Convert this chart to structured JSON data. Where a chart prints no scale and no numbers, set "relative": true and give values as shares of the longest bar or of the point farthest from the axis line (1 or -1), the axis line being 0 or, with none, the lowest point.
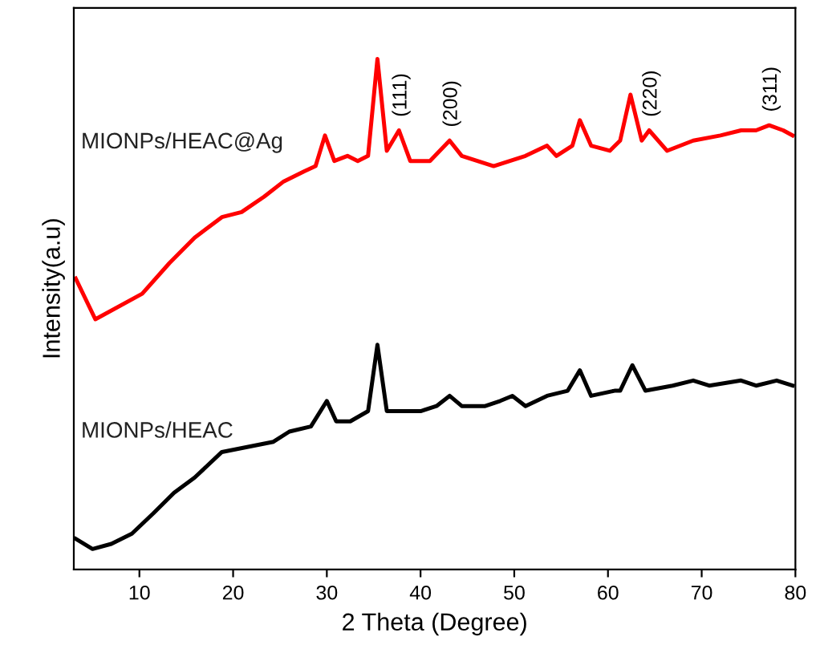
{
  "chart_data": {
    "type": "line",
    "relative": true,
    "xlabel": "2 Theta (Degree)",
    "ylabel": "Intensity(a.u)",
    "xlim": [
      3,
      80
    ],
    "xticks": [
      10,
      20,
      30,
      40,
      50,
      60,
      70,
      80
    ],
    "grid": false,
    "legend": false,
    "marker": "none",
    "line_style": "solid",
    "series": [
      {
        "name": "MIONPs/HEAC@Ag",
        "color": "#ff0000",
        "x": [
          3.2,
          5.3,
          10.3,
          13.2,
          15.9,
          18.8,
          20.9,
          23.3,
          25.4,
          27.6,
          28.8,
          29.8,
          30.8,
          32.2,
          33.3,
          34.4,
          35.4,
          36.4,
          37.7,
          38.9,
          41.0,
          43.1,
          44.4,
          47.8,
          51.2,
          53.5,
          54.5,
          56.2,
          57.0,
          58.2,
          60.2,
          61.3,
          62.4,
          63.6,
          64.4,
          66.3,
          69.1,
          72.0,
          74.2,
          75.8,
          77.2,
          78.7,
          79.7
        ],
        "values": [
          0.57,
          0.49,
          0.54,
          0.6,
          0.65,
          0.69,
          0.7,
          0.73,
          0.76,
          0.78,
          0.79,
          0.85,
          0.8,
          0.81,
          0.8,
          0.81,
          1,
          0.82,
          0.86,
          0.8,
          0.8,
          0.84,
          0.81,
          0.79,
          0.81,
          0.83,
          0.81,
          0.83,
          0.88,
          0.83,
          0.82,
          0.84,
          0.93,
          0.84,
          0.86,
          0.82,
          0.84,
          0.85,
          0.86,
          0.86,
          0.87,
          0.86,
          0.85
        ]
      },
      {
        "name": "MIONPs/HEAC",
        "color": "#000000",
        "x": [
          3.2,
          5.0,
          7.0,
          9.2,
          11.5,
          13.7,
          15.9,
          18.8,
          21.6,
          24.3,
          26.0,
          28.3,
          30.0,
          31.0,
          32.5,
          34.4,
          35.4,
          36.4,
          37.7,
          40.0,
          41.7,
          43.1,
          44.4,
          46.9,
          48.5,
          49.8,
          51.2,
          53.5,
          55.7,
          57.0,
          58.2,
          60.7,
          61.3,
          62.6,
          64.0,
          66.9,
          69.1,
          70.8,
          74.2,
          75.8,
          78.0,
          79.7
        ],
        "values": [
          0.06,
          0.04,
          0.05,
          0.07,
          0.11,
          0.15,
          0.18,
          0.23,
          0.24,
          0.25,
          0.27,
          0.28,
          0.33,
          0.29,
          0.29,
          0.31,
          0.44,
          0.31,
          0.31,
          0.31,
          0.32,
          0.34,
          0.32,
          0.32,
          0.33,
          0.34,
          0.32,
          0.34,
          0.35,
          0.39,
          0.34,
          0.35,
          0.35,
          0.4,
          0.35,
          0.36,
          0.37,
          0.36,
          0.37,
          0.36,
          0.37,
          0.36
        ]
      }
    ],
    "annotations": [
      {
        "text": "(111)",
        "x": 37.7,
        "y": 0.86
      },
      {
        "text": "(200)",
        "x": 43.1,
        "y": 0.84
      },
      {
        "text": "(220)",
        "x": 64.4,
        "y": 0.86
      },
      {
        "text": "(311)",
        "x": 77.2,
        "y": 0.87
      }
    ]
  }
}
